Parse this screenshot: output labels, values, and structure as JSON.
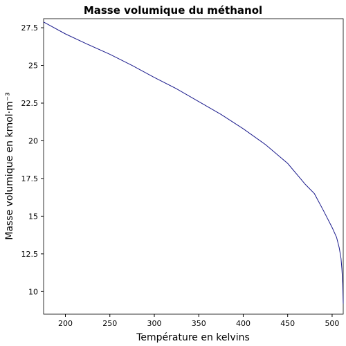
{
  "chart_data": {
    "type": "line",
    "title": "Masse volumique du méthanol",
    "xlabel": "Température en kelvins",
    "ylabel": "Masse volumique en kmol·m⁻³",
    "xlim": [
      175.47,
      512.5
    ],
    "ylim": [
      8.5,
      28.1
    ],
    "xticks": [
      200,
      250,
      300,
      350,
      400,
      450,
      500
    ],
    "yticks": [
      10,
      12.5,
      15,
      17.5,
      20,
      22.5,
      25,
      27.5
    ],
    "xtick_labels": [
      "200",
      "250",
      "300",
      "350",
      "400",
      "450",
      "500"
    ],
    "ytick_labels": [
      "10",
      "12.5",
      "15",
      "17.5",
      "20",
      "22.5",
      "25",
      "27.5"
    ],
    "grid": false,
    "legend": "none",
    "colors": {
      "line": "#1a1a8c",
      "axis": "#000000"
    },
    "series": [
      {
        "x": [
          175.47,
          200,
          225,
          250,
          275,
          300,
          325,
          350,
          375,
          400,
          425,
          450,
          470,
          480,
          490,
          500,
          505,
          508,
          510,
          511,
          511.9,
          512.5
        ],
        "y": [
          27.88,
          27.09,
          26.4,
          25.74,
          25.0,
          24.2,
          23.45,
          22.6,
          21.75,
          20.8,
          19.75,
          18.5,
          17.1,
          16.5,
          15.4,
          14.25,
          13.6,
          12.9,
          12.2,
          11.5,
          10.5,
          9.2
        ]
      }
    ]
  }
}
